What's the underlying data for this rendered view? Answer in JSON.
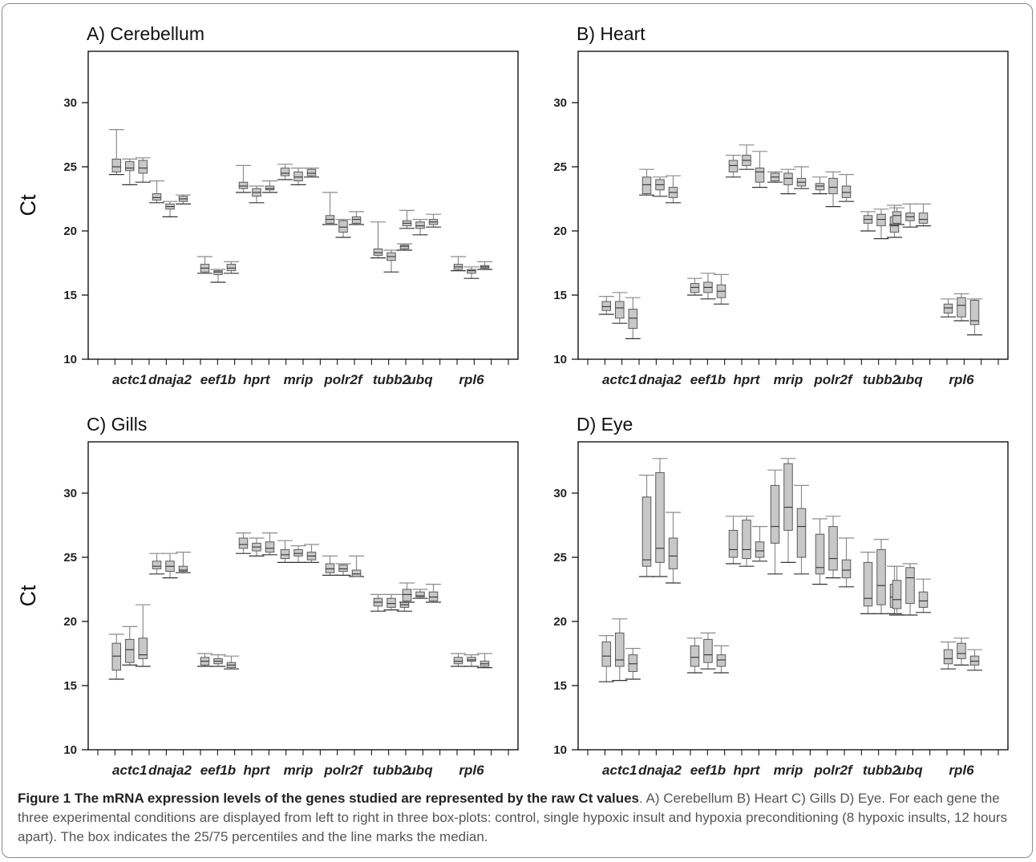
{
  "colors": {
    "box_fill": "#c8c8c8",
    "box_stroke": "#5a5a5a",
    "whisker": "#8c8c8c",
    "axis": "#000000",
    "caption_text": "#555555"
  },
  "caption": {
    "title": "Figure 1 The mRNA expression levels of the genes studied are represented by the raw Ct values",
    "body": ". A) Cerebellum B) Heart C) Gills D) Eye. For each gene the three experimental conditions are displayed from left to right in three box-plots: control, single hypoxic insult and hypoxia preconditioning (8 hypoxic insults, 12 hours apart). The box indicates the 25/75 percentiles and the line marks the median."
  },
  "chart_data": [
    {
      "type": "box",
      "title": "A) Cerebellum",
      "ylabel": "Ct",
      "ylim": [
        10,
        34
      ],
      "yticks": [
        10,
        15,
        20,
        25,
        30
      ],
      "categories": [
        "actc1",
        "dnaja2",
        "eef1b",
        "hprt",
        "mrip",
        "polr2f",
        "tubb2",
        "ubq",
        "rpl6"
      ],
      "boxes": [
        [
          [
            24.4,
            24.6,
            25.0,
            25.6,
            27.9
          ],
          [
            23.6,
            24.7,
            24.9,
            25.4,
            25.6
          ],
          [
            23.8,
            24.5,
            24.9,
            25.5,
            25.7
          ]
        ],
        [
          [
            22.2,
            22.4,
            22.6,
            22.9,
            23.9
          ],
          [
            21.1,
            21.7,
            21.9,
            22.1,
            22.3
          ],
          [
            22.1,
            22.3,
            22.5,
            22.7,
            22.8
          ]
        ],
        [
          [
            16.7,
            16.8,
            17.1,
            17.4,
            18.0
          ],
          [
            16.0,
            16.6,
            16.8,
            16.9,
            17.0
          ],
          [
            16.7,
            16.9,
            17.1,
            17.4,
            17.6
          ]
        ],
        [
          [
            23.0,
            23.3,
            23.5,
            23.8,
            25.1
          ],
          [
            22.2,
            22.7,
            23.0,
            23.3,
            23.5
          ],
          [
            23.0,
            23.2,
            23.3,
            23.5,
            23.9
          ]
        ],
        [
          [
            24.0,
            24.3,
            24.5,
            24.9,
            25.2
          ],
          [
            23.6,
            23.9,
            24.2,
            24.6,
            24.9
          ],
          [
            24.2,
            24.3,
            24.5,
            24.8,
            24.9
          ]
        ],
        [
          [
            20.5,
            20.6,
            20.9,
            21.2,
            23.0
          ],
          [
            19.5,
            19.9,
            20.3,
            20.8,
            20.9
          ],
          [
            20.5,
            20.6,
            20.9,
            21.1,
            21.5
          ]
        ],
        [
          [
            17.9,
            18.1,
            18.3,
            18.6,
            20.7
          ],
          [
            16.8,
            17.7,
            18.0,
            18.3,
            18.5
          ],
          [
            18.5,
            18.6,
            18.8,
            18.9,
            19.0
          ]
        ],
        [
          [
            20.2,
            20.4,
            20.6,
            20.8,
            21.6
          ],
          [
            19.7,
            20.2,
            20.4,
            20.7,
            20.9
          ],
          [
            20.3,
            20.5,
            20.7,
            20.9,
            21.3
          ]
        ],
        [
          [
            16.9,
            17.0,
            17.2,
            17.4,
            18.0
          ],
          [
            16.3,
            16.7,
            16.9,
            17.0,
            17.2
          ],
          [
            17.0,
            17.1,
            17.2,
            17.3,
            17.6
          ]
        ]
      ]
    },
    {
      "type": "box",
      "title": "B) Heart",
      "ylabel": "",
      "ylim": [
        10,
        34
      ],
      "yticks": [
        10,
        15,
        20,
        25,
        30
      ],
      "categories": [
        "actc1",
        "dnaja2",
        "eef1b",
        "hprt",
        "mrip",
        "polr2f",
        "tubb2",
        "ubq",
        "rpl6"
      ],
      "boxes": [
        [
          [
            13.5,
            13.8,
            14.1,
            14.5,
            14.9
          ],
          [
            12.8,
            13.2,
            14.0,
            14.5,
            15.2
          ],
          [
            11.6,
            12.4,
            13.2,
            13.9,
            14.8
          ]
        ],
        [
          [
            22.8,
            22.9,
            23.6,
            24.2,
            24.8
          ],
          [
            22.7,
            23.2,
            23.6,
            24.0,
            24.2
          ],
          [
            22.2,
            22.6,
            23.0,
            23.4,
            24.3
          ]
        ],
        [
          [
            15.0,
            15.2,
            15.6,
            15.9,
            16.3
          ],
          [
            14.7,
            15.2,
            15.6,
            16.0,
            16.7
          ],
          [
            14.3,
            14.8,
            15.3,
            15.8,
            16.6
          ]
        ],
        [
          [
            24.2,
            24.6,
            25.1,
            25.5,
            25.9
          ],
          [
            24.8,
            25.1,
            25.5,
            25.9,
            26.7
          ],
          [
            23.4,
            23.8,
            24.6,
            24.9,
            26.2
          ]
        ],
        [
          [
            23.8,
            23.9,
            24.2,
            24.5,
            24.6
          ],
          [
            22.9,
            23.6,
            24.1,
            24.5,
            24.8
          ],
          [
            23.3,
            23.5,
            23.8,
            24.1,
            25.0
          ]
        ],
        [
          [
            22.9,
            23.2,
            23.5,
            23.7,
            24.2
          ],
          [
            21.9,
            22.9,
            23.4,
            24.1,
            24.6
          ],
          [
            22.3,
            22.6,
            23.0,
            23.5,
            24.4
          ]
        ],
        [
          [
            20.0,
            20.6,
            20.9,
            21.2,
            21.5
          ],
          [
            19.4,
            20.4,
            20.9,
            21.3,
            21.7
          ],
          [
            19.5,
            19.9,
            20.4,
            21.1,
            22.0
          ]
        ],
        [
          [
            20.5,
            20.6,
            21.2,
            21.5,
            21.8
          ],
          [
            20.3,
            20.8,
            21.1,
            21.4,
            22.1
          ],
          [
            20.4,
            20.6,
            20.9,
            21.4,
            22.1
          ]
        ],
        [
          [
            13.3,
            13.6,
            14.0,
            14.3,
            14.7
          ],
          [
            13.0,
            13.3,
            14.2,
            14.8,
            15.1
          ],
          [
            11.9,
            12.7,
            13.0,
            14.6,
            14.7
          ]
        ]
      ]
    },
    {
      "type": "box",
      "title": "C) Gills",
      "ylabel": "Ct",
      "ylim": [
        10,
        34
      ],
      "yticks": [
        10,
        15,
        20,
        25,
        30
      ],
      "categories": [
        "actc1",
        "dnaja2",
        "eef1b",
        "hprt",
        "mrip",
        "polr2f",
        "tubb2",
        "ubq",
        "rpl6"
      ],
      "boxes": [
        [
          [
            15.5,
            16.2,
            17.3,
            18.3,
            19.0
          ],
          [
            16.6,
            16.8,
            17.8,
            18.6,
            19.6
          ],
          [
            16.5,
            17.1,
            17.4,
            18.7,
            21.3
          ]
        ],
        [
          [
            23.7,
            24.1,
            24.3,
            24.7,
            25.3
          ],
          [
            23.4,
            23.9,
            24.3,
            24.7,
            25.3
          ],
          [
            23.8,
            23.9,
            24.0,
            24.3,
            25.4
          ]
        ],
        [
          [
            16.5,
            16.6,
            16.9,
            17.2,
            17.5
          ],
          [
            16.5,
            16.7,
            16.9,
            17.1,
            17.4
          ],
          [
            16.3,
            16.4,
            16.6,
            16.8,
            17.3
          ]
        ],
        [
          [
            25.3,
            25.7,
            26.0,
            26.5,
            26.9
          ],
          [
            25.1,
            25.5,
            25.8,
            26.1,
            26.5
          ],
          [
            25.2,
            25.4,
            25.7,
            26.2,
            26.9
          ]
        ],
        [
          [
            24.6,
            24.9,
            25.2,
            25.6,
            26.3
          ],
          [
            24.6,
            25.1,
            25.3,
            25.6,
            25.9
          ],
          [
            24.6,
            24.8,
            25.1,
            25.4,
            26.0
          ]
        ],
        [
          [
            23.6,
            23.8,
            24.1,
            24.5,
            25.1
          ],
          [
            23.6,
            23.9,
            24.1,
            24.4,
            24.5
          ],
          [
            23.5,
            23.5,
            23.7,
            24.0,
            25.1
          ]
        ],
        [
          [
            20.8,
            21.2,
            21.5,
            21.8,
            22.1
          ],
          [
            20.9,
            21.1,
            21.4,
            21.8,
            22.1
          ],
          [
            20.8,
            21.1,
            21.3,
            21.5,
            22.1
          ]
        ],
        [
          [
            21.5,
            21.6,
            22.1,
            22.5,
            23.0
          ],
          [
            21.8,
            21.9,
            22.0,
            22.3,
            22.5
          ],
          [
            21.5,
            21.6,
            21.9,
            22.3,
            22.9
          ]
        ],
        [
          [
            16.5,
            16.7,
            16.9,
            17.2,
            17.5
          ],
          [
            16.5,
            16.9,
            17.0,
            17.2,
            17.4
          ],
          [
            16.4,
            16.5,
            16.7,
            16.9,
            17.5
          ]
        ]
      ]
    },
    {
      "type": "box",
      "title": "D) Eye",
      "ylabel": "",
      "ylim": [
        10,
        34
      ],
      "yticks": [
        10,
        15,
        20,
        25,
        30
      ],
      "categories": [
        "actc1",
        "dnaja2",
        "eef1b",
        "hprt",
        "mrip",
        "polr2f",
        "tubb2",
        "ubq",
        "rpl6"
      ],
      "boxes": [
        [
          [
            15.3,
            16.5,
            17.3,
            18.4,
            18.9
          ],
          [
            15.4,
            16.5,
            17.0,
            19.1,
            20.2
          ],
          [
            15.5,
            16.1,
            16.7,
            17.4,
            17.9
          ]
        ],
        [
          [
            23.5,
            24.3,
            24.8,
            29.7,
            31.4
          ],
          [
            23.5,
            24.6,
            25.7,
            31.6,
            32.7
          ],
          [
            23.0,
            24.1,
            25.1,
            26.5,
            28.5
          ]
        ],
        [
          [
            16.0,
            16.5,
            17.2,
            18.1,
            18.7
          ],
          [
            16.3,
            16.8,
            17.4,
            18.6,
            19.1
          ],
          [
            16.0,
            16.5,
            17.0,
            17.4,
            18.1
          ]
        ],
        [
          [
            24.5,
            25.0,
            25.6,
            27.1,
            28.2
          ],
          [
            24.3,
            24.9,
            25.6,
            27.9,
            28.2
          ],
          [
            24.7,
            25.0,
            25.5,
            26.2,
            27.4
          ]
        ],
        [
          [
            23.7,
            26.1,
            27.4,
            30.6,
            31.8
          ],
          [
            24.6,
            27.1,
            28.9,
            32.3,
            32.7
          ],
          [
            23.7,
            25.0,
            27.4,
            28.8,
            30.6
          ]
        ],
        [
          [
            22.9,
            23.7,
            24.2,
            26.8,
            28.0
          ],
          [
            23.4,
            24.0,
            24.9,
            27.4,
            28.2
          ],
          [
            22.7,
            23.4,
            24.0,
            24.8,
            26.5
          ]
        ],
        [
          [
            20.6,
            21.2,
            21.8,
            24.6,
            25.4
          ],
          [
            20.6,
            21.3,
            22.8,
            25.6,
            26.4
          ],
          [
            20.6,
            21.1,
            21.9,
            22.9,
            24.3
          ]
        ],
        [
          [
            20.5,
            21.0,
            21.7,
            23.2,
            24.3
          ],
          [
            20.5,
            21.4,
            23.4,
            24.2,
            24.5
          ],
          [
            20.7,
            21.1,
            21.6,
            22.3,
            23.3
          ]
        ],
        [
          [
            16.3,
            16.7,
            17.1,
            17.8,
            18.4
          ],
          [
            16.6,
            17.1,
            17.5,
            18.3,
            18.7
          ],
          [
            16.2,
            16.6,
            16.9,
            17.3,
            17.8
          ]
        ]
      ]
    }
  ]
}
